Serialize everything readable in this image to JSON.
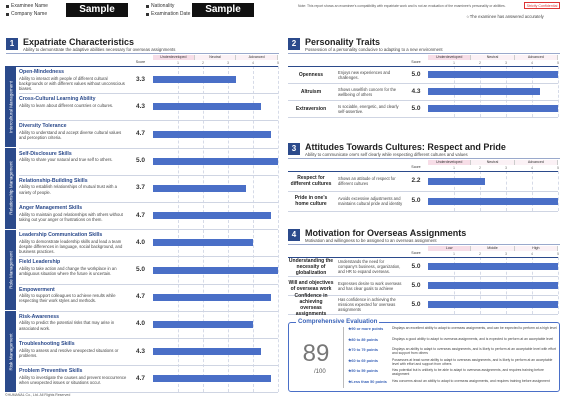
{
  "header": {
    "left_labels": [
      "Examinee Name",
      "Company Name"
    ],
    "left_value": "Sample",
    "right_labels": [
      "Nationality",
      "Examination Date"
    ],
    "right_value": "Sample",
    "note": "Note: This report shows an examinee's compatibility with expatriate work and is not an evaluation of the examinee's personality or abilities.",
    "confidential": "Strictly Confidential",
    "accuracy_note": "☆The examinee has answered accurately"
  },
  "sections": [
    {
      "number": "1",
      "title": "Expatriate Characteristics",
      "subtitle": "Ability to demonstrate the adaptive abilities necessary for overseas assignments",
      "score_header": "Score",
      "scale_labels": [
        "Underdeveloped",
        "Neutral",
        "Advanced"
      ],
      "xlim": [
        0,
        5
      ],
      "xticks": [
        1,
        2,
        3,
        4,
        5
      ],
      "groups": [
        {
          "label": "Intercultural Management",
          "items": [
            {
              "name": "Open-Mindedness",
              "desc": "Ability to interact with people of different cultural backgrounds or with different values without unconscious biases.",
              "score": 3.3,
              "score_label": "3.3"
            },
            {
              "name": "Cross-Cultural Learning Ability",
              "desc": "Ability to learn about different countries or cultures.",
              "score": 4.3,
              "score_label": "4.3"
            },
            {
              "name": "Diversity Tolerance",
              "desc": "Ability to understand and accept diverse cultural values and perception criteria.",
              "score": 4.7,
              "score_label": "4.7"
            }
          ]
        },
        {
          "label": "Relationship Management",
          "items": [
            {
              "name": "Self-Disclosure Skills",
              "desc": "Ability to share your natural and true self to others.",
              "score": 5.0,
              "score_label": "5.0"
            },
            {
              "name": "Relationship-Building Skills",
              "desc": "Ability to establish relationships of mutual trust with a variety of people.",
              "score": 3.7,
              "score_label": "3.7"
            },
            {
              "name": "Anger Management Skills",
              "desc": "Ability to maintain good relationships with others without taking out your anger or frustrations on them.",
              "score": 4.7,
              "score_label": "4.7"
            }
          ]
        },
        {
          "label": "Role Management",
          "items": [
            {
              "name": "Leadership Communication Skills",
              "desc": "Ability to demonstrate leadership skills and lead a team despite differences in language, social background, and business practices.",
              "score": 4.0,
              "score_label": "4.0"
            },
            {
              "name": "Field Leadership",
              "desc": "Ability to take action and change the workplace in an ambiguous situation where the future is uncertain.",
              "score": 5.0,
              "score_label": "5.0"
            },
            {
              "name": "Empowerment",
              "desc": "Ability to support colleagues to achieve results while respecting their work styles and methods.",
              "score": 4.7,
              "score_label": "4.7"
            }
          ]
        },
        {
          "label": "Risk Management",
          "items": [
            {
              "name": "Risk-Awareness",
              "desc": "Ability to predict the potential risks that may arise in associated work.",
              "score": 4.0,
              "score_label": "4.0"
            },
            {
              "name": "Troubleshooting Skills",
              "desc": "Ability to assess and resolve unexpected situations or problems.",
              "score": 4.3,
              "score_label": "4.3"
            },
            {
              "name": "Problem Preventive Skills",
              "desc": "Ability to investigate the causes and prevent reoccurrence when unexpected issues or situations occur.",
              "score": 4.7,
              "score_label": "4.7"
            }
          ]
        }
      ]
    },
    {
      "number": "2",
      "title": "Personality Traits",
      "subtitle": "Possession of a personality conducive to adapting to a new environment",
      "score_header": "Score",
      "scale_labels": [
        "Underdeveloped",
        "Neutral",
        "Advanced"
      ],
      "xlim": [
        0,
        5
      ],
      "xticks": [
        1,
        2,
        3,
        4,
        5
      ],
      "groups": [
        {
          "items": [
            {
              "name": "Openness",
              "desc": "Enjoys new experiences and challenges.",
              "score": 5.0,
              "score_label": "5.0"
            },
            {
              "name": "Altruism",
              "desc": "Shows unselfish concern for the wellbeing of others",
              "score": 4.3,
              "score_label": "4.3"
            },
            {
              "name": "Extraversion",
              "desc": "Is sociable, energetic, and clearly self-assertive.",
              "score": 5.0,
              "score_label": "5.0"
            }
          ]
        }
      ]
    },
    {
      "number": "3",
      "title": "Attitudes Towards Cultures: Respect and Pride",
      "subtitle": "Ability to communicate one's self clearly while respecting different cultures and values",
      "score_header": "Score",
      "scale_labels": [
        "Underdeveloped",
        "Neutral",
        "Advanced"
      ],
      "xlim": [
        0,
        5
      ],
      "xticks": [
        1,
        2,
        3,
        4,
        5
      ],
      "groups": [
        {
          "items": [
            {
              "name": "Respect for different cultures",
              "desc": "Shows an attitude of respect for different cultures",
              "score": 2.2,
              "score_label": "2.2"
            },
            {
              "name": "Pride in one's home culture",
              "desc": "Avoids excessive adjustments and maintains cultural pride and identity",
              "score": 5.0,
              "score_label": "5.0"
            }
          ]
        }
      ]
    },
    {
      "number": "4",
      "title": "Motivation for Overseas Assignments",
      "subtitle": "Motivation and willingness to be assigned to an overseas assignment",
      "score_header": "Score",
      "scale_labels": [
        "Low",
        "Middle",
        "High"
      ],
      "xlim": [
        0,
        5
      ],
      "xticks": [
        1,
        2,
        3,
        4,
        5
      ],
      "groups": [
        {
          "items": [
            {
              "name": "Understanding the necessity of globalization",
              "desc": "Understands the need for company's business, organization, and HR to expand overseas.",
              "score": 5.0,
              "score_label": "5.0"
            },
            {
              "name": "Will and objectives of overseas work",
              "desc": "Expresses desire to work overseas and has clear goals to achieve",
              "score": 5.0,
              "score_label": "5.0"
            },
            {
              "name": "Confidence in achieving overseas assignments",
              "desc": "Has confidence in achieving the missions expected for overseas assignments",
              "score": 5.0,
              "score_label": "5.0"
            }
          ]
        }
      ]
    }
  ],
  "evaluation": {
    "title": "Comprehensive Evaluation",
    "score": 89,
    "out_of": "/100",
    "levels": [
      {
        "range": "★90 or more points",
        "text": "Displays an excellent ability to adapt to overseas assignments, and can be expected to perform at a high level"
      },
      {
        "range": "★80 to 89 points",
        "text": "Displays a good ability to adapt to overseas assignments, and is expected to perform at an acceptable level"
      },
      {
        "range": "★70 to 79 points",
        "text": "Displays an ability to adapt to overseas assignments, and is likely to perform at an acceptable level with effort and support from others"
      },
      {
        "range": "★60 to 69 points",
        "text": "Possesses at least some ability to adapt to overseas assignments, and is likely to perform at an acceptable level with effort and support from others"
      },
      {
        "range": "★50 to 59 points",
        "text": "Has potential but is unlikely to be able to adapt to overseas assignments, and requires training before assignment"
      },
      {
        "range": "★Less than 50 points",
        "text": "Has concerns about an ability to adapt to overseas assignments, and requires training before assignment"
      }
    ]
  },
  "footer": "©HUMANAL Co., Ltd. All Rights Reserved"
}
